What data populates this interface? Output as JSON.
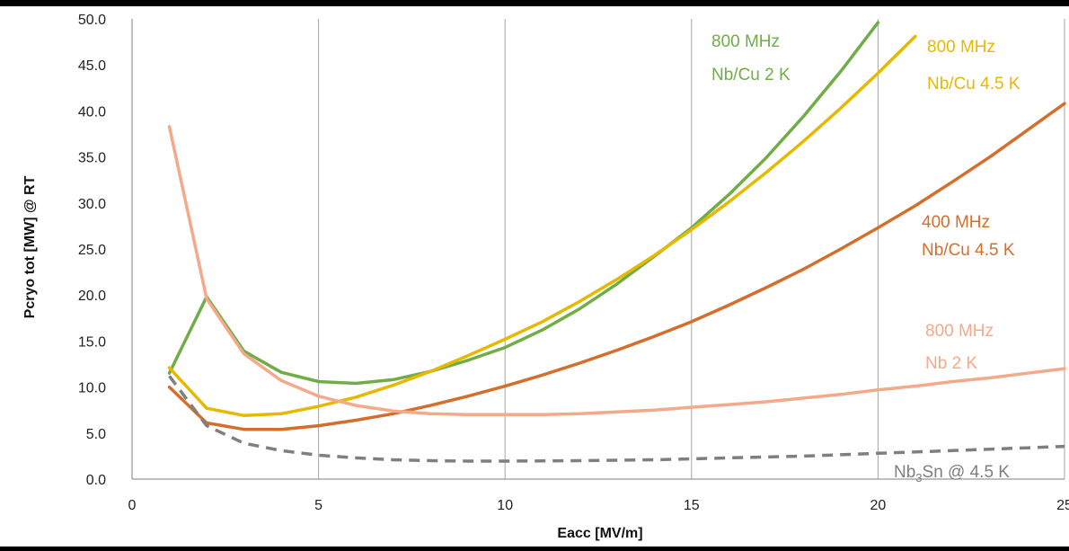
{
  "chart_data": {
    "type": "line",
    "title": "",
    "xlabel": "Eacc [MV/m]",
    "ylabel": "Pcryo tot [MW] @ RT",
    "xlim": [
      0,
      25
    ],
    "ylim": [
      0,
      50
    ],
    "x_ticks": [
      "0",
      "5",
      "10",
      "15",
      "20",
      "25"
    ],
    "y_ticks": [
      "0.0",
      "5.0",
      "10.0",
      "15.0",
      "20.0",
      "25.0",
      "30.0",
      "35.0",
      "40.0",
      "45.0",
      "50.0"
    ],
    "grid": "vertical",
    "legend": "inline labels",
    "series": [
      {
        "line1": "800 MHz",
        "line2": "Nb/Cu 2 K",
        "color": "#70ad47",
        "dash": "solid",
        "x": [
          1,
          2,
          3,
          4,
          5,
          6,
          7,
          8,
          9,
          10,
          11,
          12,
          13,
          14,
          15,
          16,
          17,
          18,
          19,
          20
        ],
        "y": [
          11.5,
          19.8,
          13.9,
          11.6,
          10.6,
          10.4,
          10.8,
          11.7,
          12.9,
          14.3,
          16.2,
          18.5,
          21.2,
          24.2,
          27.3,
          30.9,
          34.9,
          39.4,
          44.3,
          49.6
        ]
      },
      {
        "line1": "800 MHz",
        "line2": "Nb/Cu 4.5 K",
        "color": "#e6b800",
        "dash": "solid",
        "x": [
          1,
          2,
          3,
          4,
          5,
          6,
          7,
          8,
          9,
          10,
          11,
          12,
          13,
          14,
          15,
          16,
          17,
          18,
          19,
          20,
          21
        ],
        "y": [
          12.1,
          7.7,
          6.9,
          7.1,
          7.9,
          8.9,
          10.2,
          11.7,
          13.4,
          15.2,
          17.1,
          19.3,
          21.7,
          24.3,
          27.1,
          30.1,
          33.3,
          36.7,
          40.3,
          44.1,
          48.1
        ]
      },
      {
        "line1": "400 MHz",
        "line2": "Nb/Cu 4.5 K",
        "color": "#d46e2c",
        "dash": "solid",
        "x": [
          1,
          2,
          3,
          4,
          5,
          6,
          7,
          8,
          9,
          10,
          11,
          12,
          13,
          14,
          15,
          16,
          17,
          18,
          19,
          20,
          21,
          22,
          23,
          24,
          25
        ],
        "y": [
          10.0,
          6.1,
          5.4,
          5.4,
          5.8,
          6.4,
          7.1,
          8.0,
          9.0,
          10.1,
          11.3,
          12.6,
          14.0,
          15.5,
          17.1,
          18.9,
          20.8,
          22.8,
          25.0,
          27.3,
          29.7,
          32.3,
          35.0,
          37.9,
          40.8
        ]
      },
      {
        "line1": "800 MHz",
        "line2": "Nb 2 K",
        "color": "#f4a98a",
        "dash": "solid",
        "x": [
          1,
          2,
          3,
          4,
          5,
          6,
          7,
          8,
          9,
          10,
          11,
          12,
          13,
          14,
          15,
          16,
          17,
          18,
          19,
          20,
          21,
          22,
          23,
          24,
          25
        ],
        "y": [
          38.3,
          19.6,
          13.6,
          10.7,
          9.0,
          8.0,
          7.4,
          7.1,
          7.0,
          7.0,
          7.0,
          7.1,
          7.3,
          7.5,
          7.8,
          8.1,
          8.4,
          8.8,
          9.2,
          9.7,
          10.1,
          10.6,
          11.0,
          11.5,
          12.0
        ]
      },
      {
        "line1": "Nb",
        "sub": "3",
        "line1b": "Sn @ 4.5 K",
        "line2": "",
        "color": "#7f7f7f",
        "dash": "dashed",
        "x": [
          1,
          2,
          3,
          4,
          5,
          6,
          7,
          8,
          9,
          10,
          11,
          12,
          13,
          14,
          15,
          16,
          17,
          18,
          19,
          20,
          21,
          22,
          23,
          24,
          25
        ],
        "y": [
          11.2,
          5.8,
          3.9,
          3.1,
          2.6,
          2.3,
          2.1,
          2.0,
          1.95,
          1.95,
          1.97,
          2.0,
          2.05,
          2.1,
          2.2,
          2.3,
          2.4,
          2.5,
          2.65,
          2.8,
          2.95,
          3.1,
          3.25,
          3.4,
          3.55
        ]
      }
    ]
  }
}
